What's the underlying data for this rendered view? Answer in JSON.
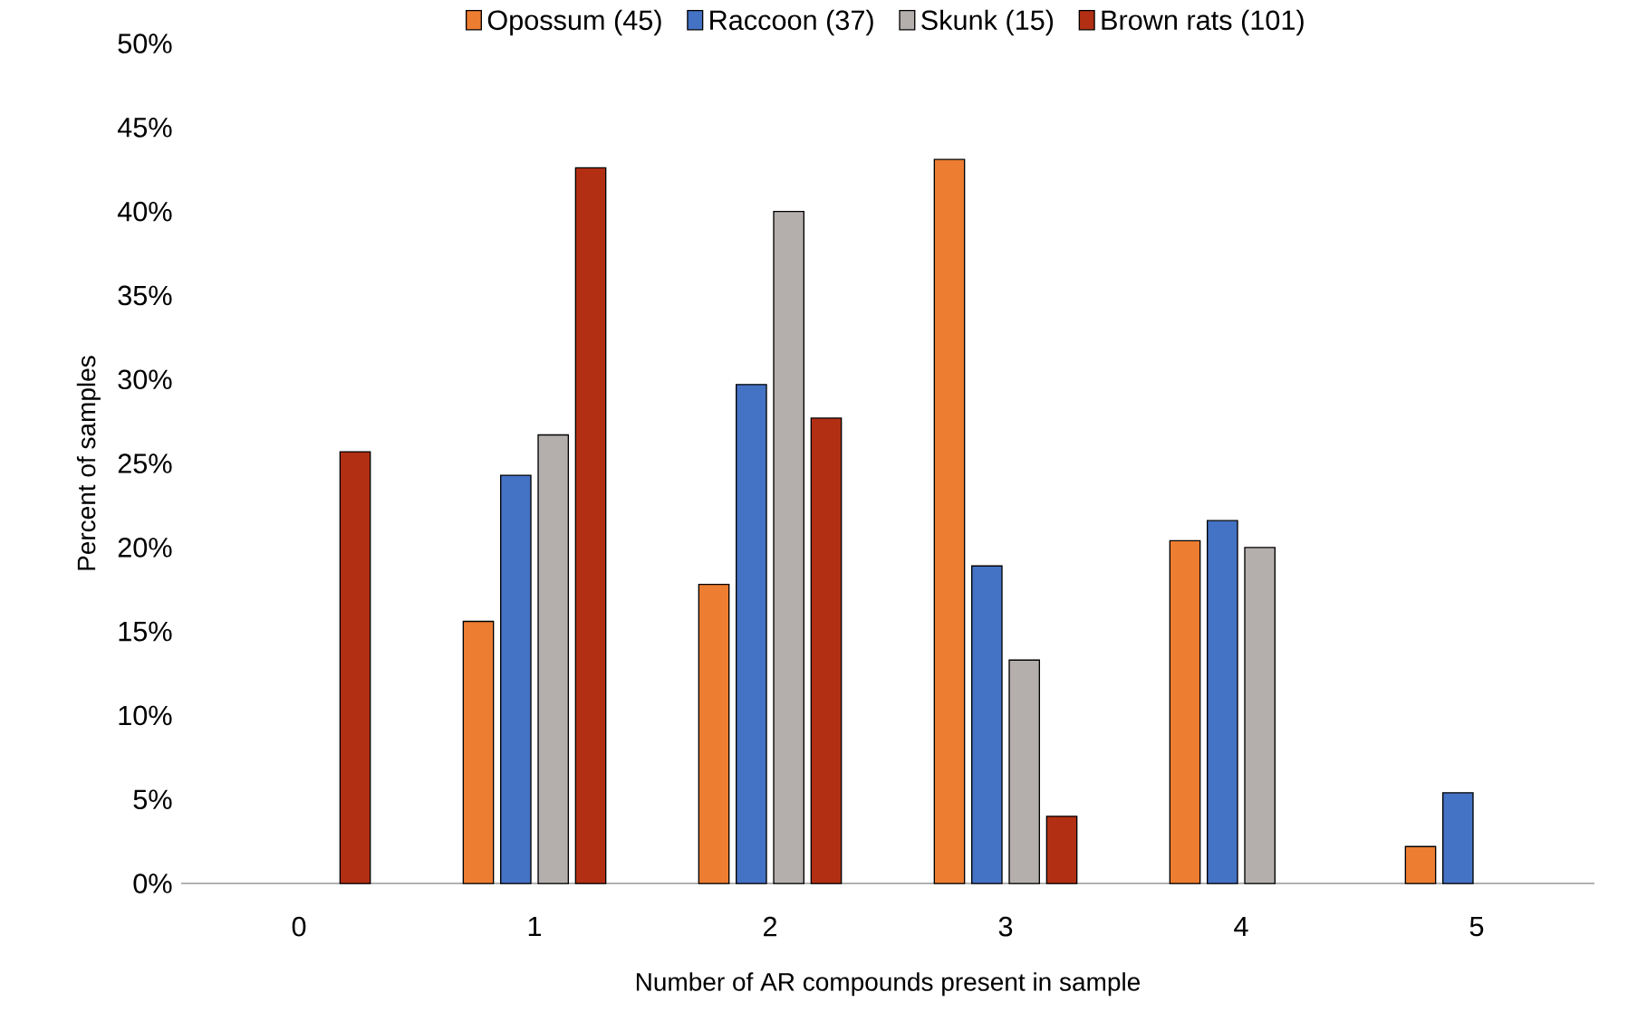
{
  "chart_data": {
    "type": "bar",
    "xlabel": "Number of AR compounds present in sample",
    "ylabel": "Percent of samples",
    "categories": [
      "0",
      "1",
      "2",
      "3",
      "4",
      "5"
    ],
    "series": [
      {
        "name": "Opossum (45)",
        "color": "#ed7d31",
        "values": [
          null,
          15.6,
          17.8,
          43.1,
          20.4,
          2.2
        ]
      },
      {
        "name": "Raccoon (37)",
        "color": "#4472c4",
        "values": [
          null,
          24.3,
          29.7,
          18.9,
          21.6,
          5.4
        ]
      },
      {
        "name": "Skunk (15)",
        "color": "#b4afad",
        "values": [
          null,
          26.7,
          40.0,
          13.3,
          20.0,
          null
        ]
      },
      {
        "name": "Brown rats (101)",
        "color": "#b22f14",
        "values": [
          25.7,
          42.6,
          27.7,
          4.0,
          null,
          null
        ]
      }
    ],
    "ylim": [
      0,
      50
    ],
    "yticks": [
      {
        "value": 0,
        "label": "0%"
      },
      {
        "value": 5,
        "label": "5%"
      },
      {
        "value": 10,
        "label": "10%"
      },
      {
        "value": 15,
        "label": "15%"
      },
      {
        "value": 20,
        "label": "20%"
      },
      {
        "value": 25,
        "label": "25%"
      },
      {
        "value": 30,
        "label": "30%"
      },
      {
        "value": 35,
        "label": "35%"
      },
      {
        "value": 40,
        "label": "40%"
      },
      {
        "value": 45,
        "label": "45%"
      },
      {
        "value": 50,
        "label": "50%"
      }
    ],
    "legend": "top"
  }
}
